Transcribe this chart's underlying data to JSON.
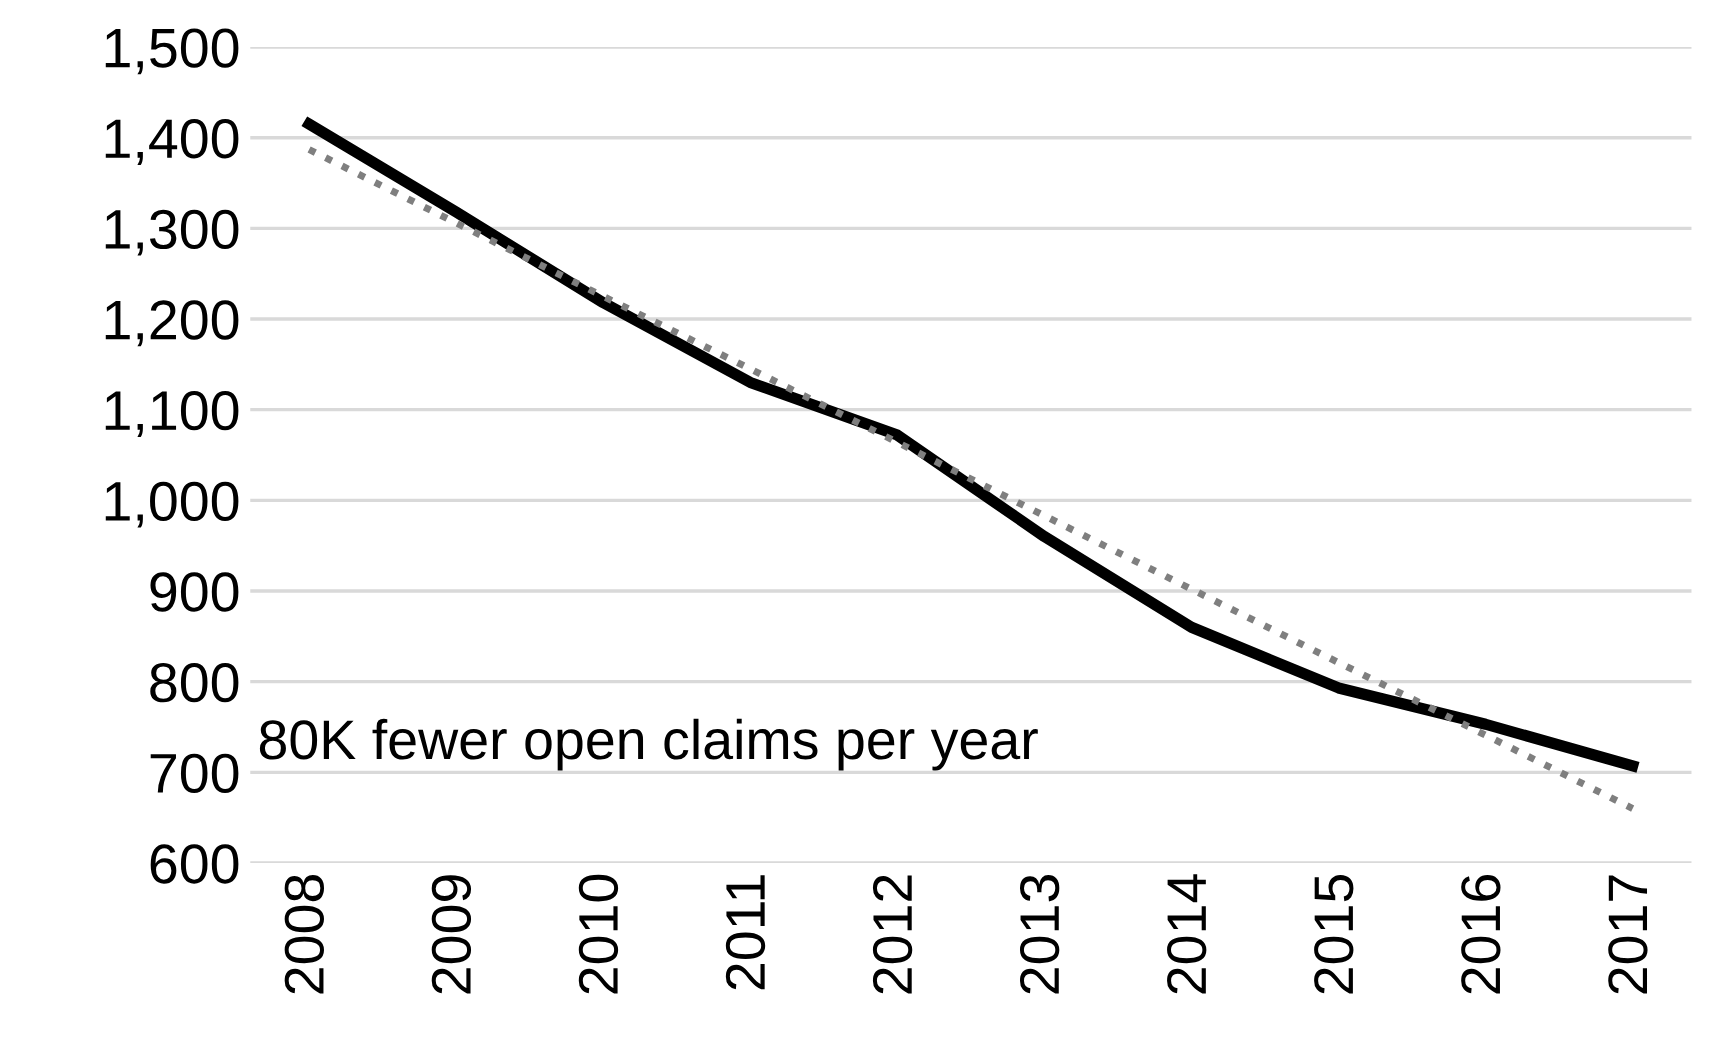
{
  "chart_data": {
    "type": "line",
    "categories": [
      "2008",
      "2009",
      "2010",
      "2011",
      "2012",
      "2013",
      "2014",
      "2015",
      "2016",
      "2017"
    ],
    "series": [
      {
        "color": "#000000",
        "line_style": "solid",
        "values": [
          1415,
          1318,
          1218,
          1130,
          1072,
          960,
          860,
          793,
          753,
          707
        ]
      },
      {
        "color": "#7f7f7f",
        "line_style": "dotted",
        "values": [
          1387,
          1306,
          1225,
          1145,
          1064,
          983,
          902,
          821,
          741,
          660
        ]
      }
    ],
    "ylim": [
      600,
      1500
    ],
    "yticks": [
      {
        "value": 600,
        "label": "600"
      },
      {
        "value": 700,
        "label": "700"
      },
      {
        "value": 800,
        "label": "800"
      },
      {
        "value": 900,
        "label": "900"
      },
      {
        "value": 1000,
        "label": "1,000"
      },
      {
        "value": 1100,
        "label": "1,100"
      },
      {
        "value": 1200,
        "label": "1,200"
      },
      {
        "value": 1300,
        "label": "1,300"
      },
      {
        "value": 1400,
        "label": "1,400"
      },
      {
        "value": 1500,
        "label": "1,500"
      }
    ],
    "grid": "y",
    "legend": false,
    "marker": "none",
    "annotations": [
      "80K fewer open claims per year"
    ]
  }
}
